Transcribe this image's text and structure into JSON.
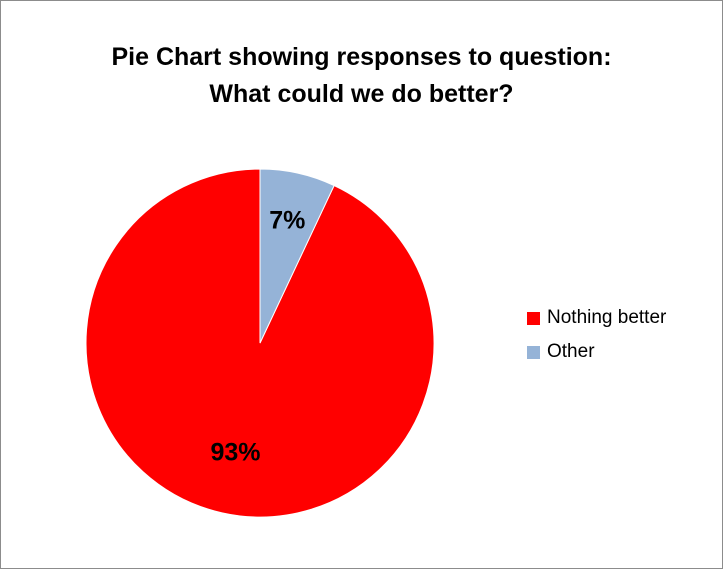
{
  "chart_data": {
    "type": "pie",
    "title": [
      "Pie Chart showing responses to question:",
      "What could we do better?"
    ],
    "series": [
      {
        "name": "Nothing better",
        "value": 93,
        "label": "93%",
        "color": "#ff0000"
      },
      {
        "name": "Other",
        "value": 7,
        "label": "7%",
        "color": "#95b3d7"
      }
    ],
    "legend_position": "right",
    "start": "top",
    "direction": "counter-clockwise"
  }
}
